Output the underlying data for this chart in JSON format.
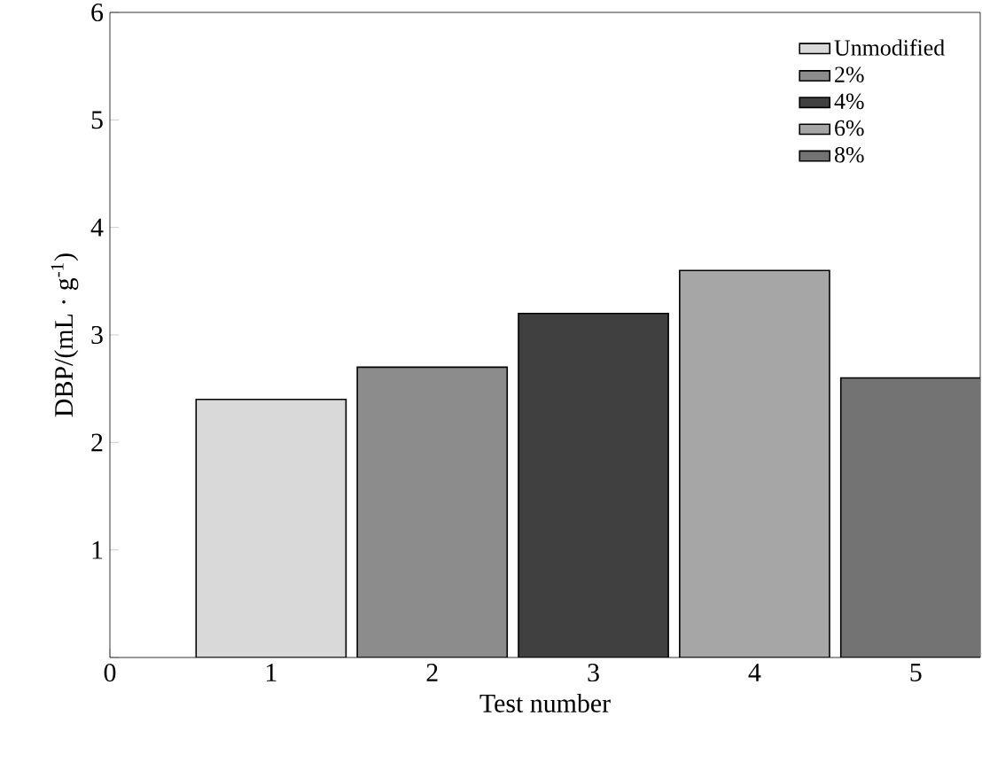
{
  "chart_data": {
    "type": "bar",
    "xlabel": "Test number",
    "ylabel": "DBP/(mL · g$^{-1}$)",
    "xlim": [
      0,
      5.4
    ],
    "ylim": [
      0,
      6
    ],
    "xticks": [
      0,
      1,
      2,
      3,
      4,
      5
    ],
    "yticks": [
      {
        "value": 0,
        "label": null
      },
      1,
      2,
      3,
      4,
      5,
      6
    ],
    "legend": "top right",
    "series": [
      {
        "name": "Unmodified",
        "color": "#d9d9d9",
        "x": [
          1
        ],
        "values": [
          2.4
        ]
      },
      {
        "name": "2%",
        "color": "#8c8c8c",
        "x": [
          2
        ],
        "values": [
          2.7
        ]
      },
      {
        "name": "4%",
        "color": "#404040",
        "x": [
          3
        ],
        "values": [
          3.2
        ]
      },
      {
        "name": "6%",
        "color": "#a6a6a6",
        "x": [
          4
        ],
        "values": [
          3.6
        ]
      },
      {
        "name": "8%",
        "color": "#737373",
        "x": [
          5
        ],
        "values": [
          2.6
        ]
      }
    ]
  }
}
